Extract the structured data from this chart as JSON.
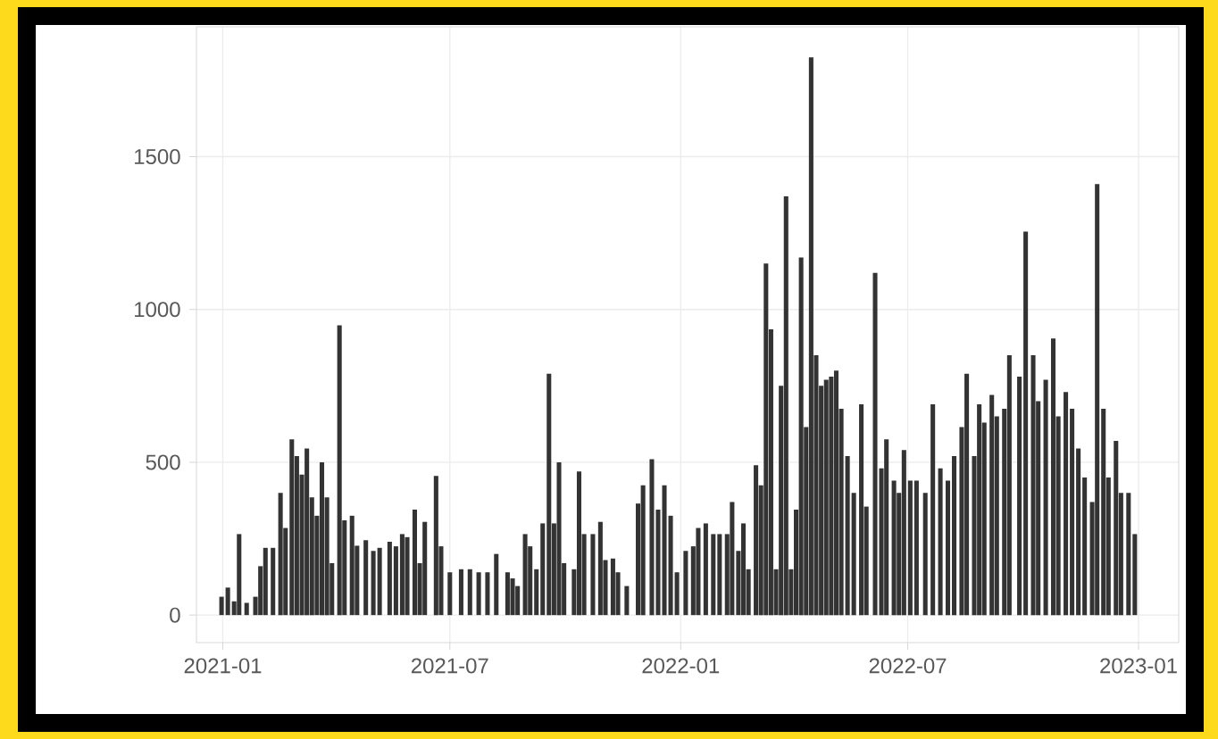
{
  "chart_data": {
    "type": "bar",
    "color": "#333333",
    "grid": true,
    "xlim": [
      "2020-12-11",
      "2023-02-02"
    ],
    "xticks": [
      "2021-01",
      "2021-07",
      "2022-01",
      "2022-07",
      "2023-01"
    ],
    "ylim": [
      -90,
      1925
    ],
    "yticks": [
      0,
      500,
      1000,
      1500
    ],
    "x": [
      "2020-12-31",
      "2021-01-05",
      "2021-01-10",
      "2021-01-14",
      "2021-01-20",
      "2021-01-27",
      "2021-01-31",
      "2021-02-04",
      "2021-02-10",
      "2021-02-16",
      "2021-02-20",
      "2021-02-25",
      "2021-03-01",
      "2021-03-05",
      "2021-03-09",
      "2021-03-13",
      "2021-03-17",
      "2021-03-21",
      "2021-03-25",
      "2021-03-29",
      "2021-04-04",
      "2021-04-08",
      "2021-04-14",
      "2021-04-18",
      "2021-04-25",
      "2021-05-01",
      "2021-05-06",
      "2021-05-14",
      "2021-05-19",
      "2021-05-24",
      "2021-05-28",
      "2021-06-03",
      "2021-06-07",
      "2021-06-11",
      "2021-06-20",
      "2021-06-24",
      "2021-07-01",
      "2021-07-10",
      "2021-07-17",
      "2021-07-24",
      "2021-07-31",
      "2021-08-07",
      "2021-08-16",
      "2021-08-20",
      "2021-08-24",
      "2021-08-30",
      "2021-09-03",
      "2021-09-08",
      "2021-09-13",
      "2021-09-18",
      "2021-09-22",
      "2021-09-26",
      "2021-09-30",
      "2021-10-08",
      "2021-10-12",
      "2021-10-16",
      "2021-10-23",
      "2021-10-29",
      "2021-11-02",
      "2021-11-08",
      "2021-11-12",
      "2021-11-19",
      "2021-11-28",
      "2021-12-02",
      "2021-12-09",
      "2021-12-14",
      "2021-12-19",
      "2021-12-24",
      "2021-12-29",
      "2022-01-05",
      "2022-01-11",
      "2022-01-15",
      "2022-01-21",
      "2022-01-27",
      "2022-02-01",
      "2022-02-07",
      "2022-02-11",
      "2022-02-16",
      "2022-02-20",
      "2022-02-24",
      "2022-03-02",
      "2022-03-06",
      "2022-03-10",
      "2022-03-14",
      "2022-03-18",
      "2022-03-22",
      "2022-03-26",
      "2022-03-30",
      "2022-04-03",
      "2022-04-07",
      "2022-04-11",
      "2022-04-15",
      "2022-04-19",
      "2022-04-23",
      "2022-04-27",
      "2022-05-01",
      "2022-05-05",
      "2022-05-09",
      "2022-05-14",
      "2022-05-19",
      "2022-05-25",
      "2022-05-29",
      "2022-06-05",
      "2022-06-10",
      "2022-06-14",
      "2022-06-20",
      "2022-06-24",
      "2022-06-28",
      "2022-07-03",
      "2022-07-08",
      "2022-07-15",
      "2022-07-21",
      "2022-07-27",
      "2022-08-02",
      "2022-08-07",
      "2022-08-13",
      "2022-08-17",
      "2022-08-23",
      "2022-08-27",
      "2022-08-31",
      "2022-09-06",
      "2022-09-10",
      "2022-09-16",
      "2022-09-20",
      "2022-09-28",
      "2022-10-03",
      "2022-10-09",
      "2022-10-13",
      "2022-10-19",
      "2022-10-25",
      "2022-10-29",
      "2022-11-04",
      "2022-11-09",
      "2022-11-14",
      "2022-11-19",
      "2022-11-25",
      "2022-11-29",
      "2022-12-04",
      "2022-12-08",
      "2022-12-14",
      "2022-12-18",
      "2022-12-24",
      "2022-12-29"
    ],
    "values": [
      60,
      90,
      45,
      265,
      40,
      60,
      160,
      220,
      220,
      400,
      285,
      575,
      520,
      460,
      545,
      385,
      325,
      500,
      385,
      170,
      948,
      310,
      325,
      227,
      245,
      210,
      220,
      240,
      225,
      265,
      255,
      345,
      170,
      305,
      455,
      225,
      140,
      150,
      150,
      140,
      140,
      200,
      140,
      120,
      95,
      265,
      225,
      150,
      300,
      790,
      300,
      500,
      170,
      150,
      470,
      265,
      265,
      305,
      180,
      185,
      140,
      95,
      365,
      425,
      510,
      345,
      425,
      325,
      140,
      210,
      225,
      285,
      300,
      265,
      265,
      265,
      370,
      210,
      300,
      150,
      490,
      425,
      1150,
      935,
      150,
      750,
      1370,
      150,
      345,
      1170,
      615,
      1825,
      850,
      750,
      770,
      780,
      800,
      675,
      520,
      400,
      690,
      355,
      1120,
      480,
      575,
      440,
      400,
      540,
      440,
      440,
      400,
      690,
      480,
      440,
      520,
      615,
      790,
      520,
      690,
      630,
      720,
      650,
      675,
      850,
      780,
      1255,
      850,
      700,
      770,
      905,
      650,
      730,
      675,
      545,
      450,
      370,
      1410,
      675,
      450,
      570,
      400,
      400,
      265
    ]
  }
}
